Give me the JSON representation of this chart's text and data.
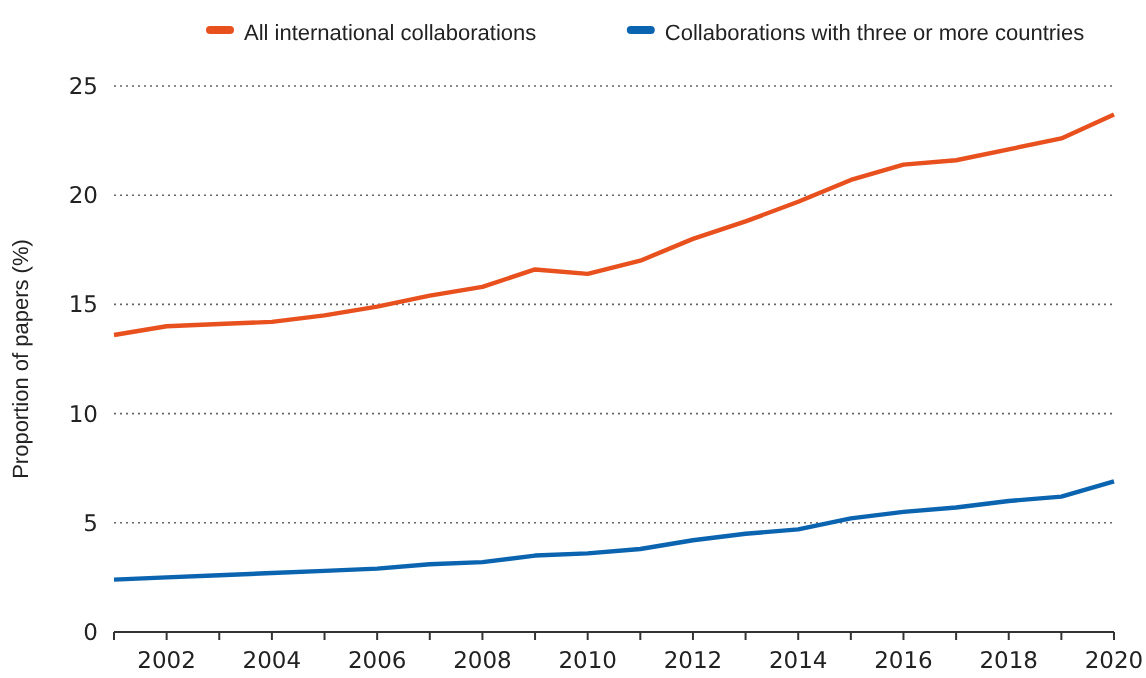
{
  "chart_data": {
    "type": "line",
    "ylabel": "Proportion of papers (%)",
    "x": [
      2001,
      2002,
      2003,
      2004,
      2005,
      2006,
      2007,
      2008,
      2009,
      2010,
      2011,
      2012,
      2013,
      2014,
      2015,
      2016,
      2017,
      2018,
      2019,
      2020
    ],
    "series": [
      {
        "name": "All international collaborations",
        "color": "#e8501e",
        "values": [
          13.6,
          14.0,
          14.1,
          14.2,
          14.5,
          14.9,
          15.4,
          15.8,
          16.6,
          16.4,
          17.0,
          18.0,
          18.8,
          19.7,
          20.7,
          21.4,
          21.6,
          22.1,
          22.6,
          23.7
        ]
      },
      {
        "name": "Collaborations with three or more countries",
        "color": "#0b64b0",
        "values": [
          2.4,
          2.5,
          2.6,
          2.7,
          2.8,
          2.9,
          3.1,
          3.2,
          3.5,
          3.6,
          3.8,
          4.2,
          4.5,
          4.7,
          5.2,
          5.5,
          5.7,
          6.0,
          6.2,
          6.9
        ]
      }
    ],
    "xlim": [
      2001,
      2020
    ],
    "xticks": [
      {
        "value": 2001,
        "label": null
      },
      2002,
      {
        "value": 2003,
        "label": null
      },
      2004,
      {
        "value": 2005,
        "label": null
      },
      2006,
      {
        "value": 2007,
        "label": null
      },
      2008,
      {
        "value": 2009,
        "label": null
      },
      2010,
      {
        "value": 2011,
        "label": null
      },
      2012,
      {
        "value": 2013,
        "label": null
      },
      2014,
      {
        "value": 2015,
        "label": null
      },
      2016,
      {
        "value": 2017,
        "label": null
      },
      2018,
      {
        "value": 2019,
        "label": null
      },
      2020
    ],
    "ylim": [
      0,
      25
    ],
    "yticks": [
      0,
      5,
      10,
      15,
      20,
      25
    ],
    "grid": "y",
    "legend": "top",
    "marker": "none",
    "line_style": "solid"
  }
}
